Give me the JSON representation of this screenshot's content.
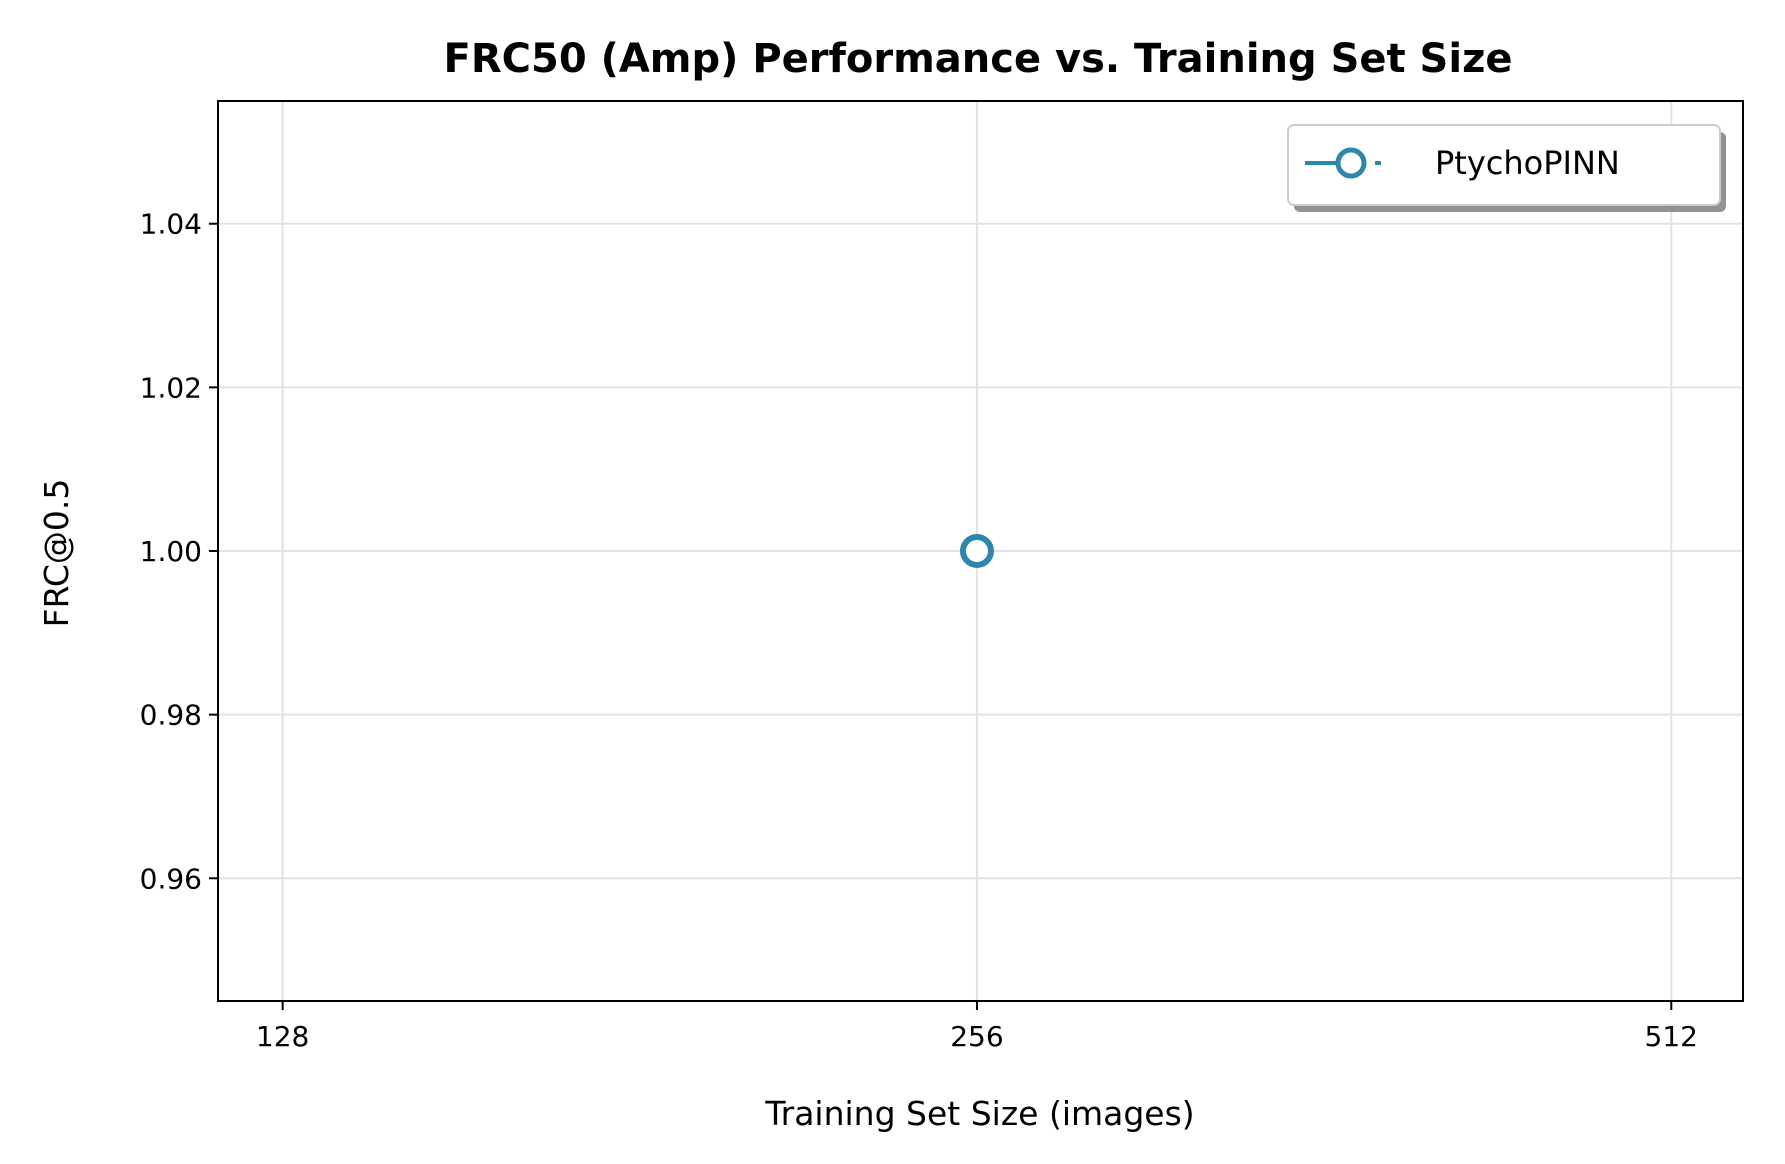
{
  "chart_data": {
    "type": "line",
    "title": "FRC50 (Amp) Performance vs. Training Set Size",
    "xlabel": "Training Set Size (images)",
    "ylabel": "FRC@0.5",
    "x_scale": "log2",
    "xlim": [
      120,
      550
    ],
    "ylim": [
      0.945,
      1.055
    ],
    "x_ticks": [
      128,
      256,
      512
    ],
    "x_tick_labels": [
      "128",
      "256",
      "512"
    ],
    "y_ticks": [
      0.96,
      0.98,
      1.0,
      1.02,
      1.04
    ],
    "y_tick_labels": [
      "0.96",
      "0.98",
      "1.00",
      "1.02",
      "1.04"
    ],
    "grid": true,
    "legend_position": "top-right",
    "series": [
      {
        "name": "PtychoPINN",
        "color": "#2e86ab",
        "marker": "hollow-circle",
        "line_style": "solid",
        "x": [
          256
        ],
        "y": [
          1.0
        ]
      }
    ]
  }
}
